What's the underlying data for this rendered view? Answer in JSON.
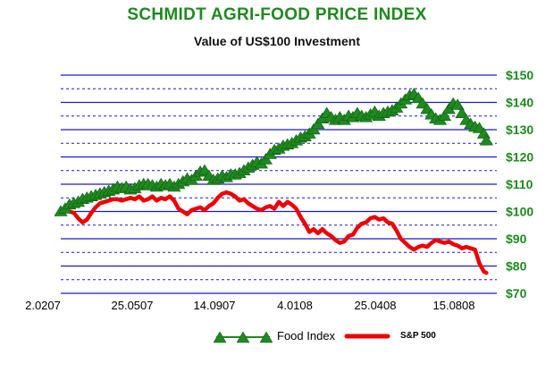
{
  "chart_data": {
    "type": "line",
    "title": "SCHMIDT AGRI-FOOD PRICE INDEX",
    "subtitle": "Value of US$100 Investment",
    "categories": [
      "2.0207",
      "25.0507",
      "14.0907",
      "4.0108",
      "25.0408",
      "15.0808"
    ],
    "y_ticks": [
      "$150",
      "$140",
      "$130",
      "$120",
      "$110",
      "$100",
      "$90",
      "$80",
      "$70"
    ],
    "ylim": [
      70,
      150
    ],
    "grid": true,
    "legend": "bottom",
    "colors": {
      "food": "#1f8a1f",
      "sp": "#ee0000",
      "grid": "#1a1acc",
      "ytick": "#1f8a1f"
    },
    "series": [
      {
        "name": "Food Index",
        "marker": "triangle",
        "points": [
          [
            0.0,
            100.0
          ],
          [
            0.05,
            101.0
          ],
          [
            0.1,
            102.5
          ],
          [
            0.15,
            103.0
          ],
          [
            0.2,
            103.5
          ],
          [
            0.25,
            104.5
          ],
          [
            0.3,
            105.0
          ],
          [
            0.35,
            105.5
          ],
          [
            0.4,
            106.0
          ],
          [
            0.45,
            106.5
          ],
          [
            0.5,
            107.0
          ],
          [
            0.55,
            107.5
          ],
          [
            0.6,
            108.0
          ],
          [
            0.65,
            109.0
          ],
          [
            0.7,
            108.5
          ],
          [
            0.75,
            109.0
          ],
          [
            0.8,
            108.0
          ],
          [
            0.85,
            108.5
          ],
          [
            0.9,
            109.5
          ],
          [
            0.95,
            110.0
          ],
          [
            1.0,
            110.0
          ],
          [
            1.05,
            109.5
          ],
          [
            1.1,
            109.0
          ],
          [
            1.15,
            110.0
          ],
          [
            1.2,
            109.5
          ],
          [
            1.25,
            110.0
          ],
          [
            1.3,
            109.0
          ],
          [
            1.35,
            110.0
          ],
          [
            1.4,
            111.0
          ],
          [
            1.45,
            112.0
          ],
          [
            1.5,
            111.5
          ],
          [
            1.55,
            113.0
          ],
          [
            1.6,
            114.5
          ],
          [
            1.65,
            115.0
          ],
          [
            1.7,
            113.0
          ],
          [
            1.75,
            111.5
          ],
          [
            1.8,
            112.0
          ],
          [
            1.85,
            113.0
          ],
          [
            1.9,
            112.5
          ],
          [
            1.95,
            113.5
          ],
          [
            2.0,
            113.5
          ],
          [
            2.05,
            114.0
          ],
          [
            2.1,
            115.0
          ],
          [
            2.15,
            116.0
          ],
          [
            2.2,
            117.0
          ],
          [
            2.25,
            118.0
          ],
          [
            2.3,
            117.5
          ],
          [
            2.35,
            119.0
          ],
          [
            2.4,
            121.0
          ],
          [
            2.45,
            122.5
          ],
          [
            2.5,
            123.0
          ],
          [
            2.55,
            124.0
          ],
          [
            2.6,
            124.5
          ],
          [
            2.65,
            125.0
          ],
          [
            2.7,
            126.0
          ],
          [
            2.75,
            127.0
          ],
          [
            2.8,
            127.5
          ],
          [
            2.85,
            128.5
          ],
          [
            2.9,
            130.0
          ],
          [
            2.95,
            132.0
          ],
          [
            3.0,
            134.0
          ],
          [
            3.05,
            136.0
          ],
          [
            3.1,
            134.5
          ],
          [
            3.15,
            133.5
          ],
          [
            3.2,
            134.5
          ],
          [
            3.25,
            133.5
          ],
          [
            3.3,
            135.0
          ],
          [
            3.35,
            134.5
          ],
          [
            3.4,
            136.0
          ],
          [
            3.45,
            135.0
          ],
          [
            3.5,
            134.5
          ],
          [
            3.55,
            135.5
          ],
          [
            3.6,
            136.5
          ],
          [
            3.65,
            135.0
          ],
          [
            3.7,
            136.0
          ],
          [
            3.75,
            136.5
          ],
          [
            3.8,
            137.0
          ],
          [
            3.85,
            138.0
          ],
          [
            3.9,
            139.5
          ],
          [
            3.95,
            141.0
          ],
          [
            4.0,
            142.5
          ],
          [
            4.05,
            143.0
          ],
          [
            4.1,
            141.5
          ],
          [
            4.15,
            139.5
          ],
          [
            4.2,
            137.5
          ],
          [
            4.25,
            135.5
          ],
          [
            4.3,
            134.0
          ],
          [
            4.35,
            133.5
          ],
          [
            4.4,
            135.0
          ],
          [
            4.45,
            137.5
          ],
          [
            4.5,
            139.5
          ],
          [
            4.55,
            139.0
          ],
          [
            4.6,
            136.0
          ],
          [
            4.65,
            133.5
          ],
          [
            4.7,
            132.0
          ],
          [
            4.75,
            131.0
          ],
          [
            4.8,
            130.5
          ],
          [
            4.85,
            128.5
          ],
          [
            4.88,
            126.0
          ]
        ]
      },
      {
        "name": "S&P 500",
        "marker": "none",
        "points": [
          [
            0.0,
            100.0
          ],
          [
            0.05,
            100.5
          ],
          [
            0.1,
            100.0
          ],
          [
            0.15,
            99.5
          ],
          [
            0.2,
            97.5
          ],
          [
            0.25,
            96.0
          ],
          [
            0.3,
            97.0
          ],
          [
            0.35,
            99.5
          ],
          [
            0.4,
            101.5
          ],
          [
            0.45,
            103.0
          ],
          [
            0.5,
            103.5
          ],
          [
            0.55,
            104.0
          ],
          [
            0.6,
            104.5
          ],
          [
            0.65,
            104.5
          ],
          [
            0.7,
            104.0
          ],
          [
            0.75,
            104.5
          ],
          [
            0.8,
            105.0
          ],
          [
            0.85,
            104.5
          ],
          [
            0.9,
            105.5
          ],
          [
            0.95,
            104.0
          ],
          [
            1.0,
            104.5
          ],
          [
            1.05,
            105.5
          ],
          [
            1.1,
            104.0
          ],
          [
            1.15,
            105.0
          ],
          [
            1.2,
            104.5
          ],
          [
            1.25,
            105.5
          ],
          [
            1.3,
            104.0
          ],
          [
            1.35,
            101.0
          ],
          [
            1.4,
            100.0
          ],
          [
            1.45,
            99.0
          ],
          [
            1.5,
            100.5
          ],
          [
            1.55,
            101.0
          ],
          [
            1.6,
            101.5
          ],
          [
            1.65,
            100.5
          ],
          [
            1.7,
            102.0
          ],
          [
            1.75,
            103.0
          ],
          [
            1.8,
            105.0
          ],
          [
            1.85,
            106.5
          ],
          [
            1.9,
            107.0
          ],
          [
            1.95,
            106.5
          ],
          [
            2.0,
            105.5
          ],
          [
            2.05,
            104.0
          ],
          [
            2.1,
            104.5
          ],
          [
            2.15,
            103.0
          ],
          [
            2.2,
            102.0
          ],
          [
            2.25,
            101.0
          ],
          [
            2.3,
            100.5
          ],
          [
            2.35,
            101.5
          ],
          [
            2.4,
            102.0
          ],
          [
            2.45,
            101.0
          ],
          [
            2.5,
            103.5
          ],
          [
            2.55,
            102.0
          ],
          [
            2.6,
            103.5
          ],
          [
            2.65,
            102.5
          ],
          [
            2.7,
            101.0
          ],
          [
            2.75,
            98.0
          ],
          [
            2.8,
            95.5
          ],
          [
            2.85,
            92.5
          ],
          [
            2.9,
            93.5
          ],
          [
            2.95,
            92.0
          ],
          [
            3.0,
            93.5
          ],
          [
            3.05,
            92.0
          ],
          [
            3.1,
            91.0
          ],
          [
            3.15,
            89.5
          ],
          [
            3.2,
            88.5
          ],
          [
            3.25,
            89.0
          ],
          [
            3.3,
            91.0
          ],
          [
            3.35,
            91.5
          ],
          [
            3.4,
            94.0
          ],
          [
            3.45,
            95.5
          ],
          [
            3.5,
            96.0
          ],
          [
            3.55,
            97.5
          ],
          [
            3.6,
            98.0
          ],
          [
            3.65,
            97.0
          ],
          [
            3.7,
            97.5
          ],
          [
            3.75,
            96.0
          ],
          [
            3.8,
            95.5
          ],
          [
            3.85,
            93.0
          ],
          [
            3.9,
            90.0
          ],
          [
            3.95,
            88.5
          ],
          [
            4.0,
            87.0
          ],
          [
            4.05,
            86.0
          ],
          [
            4.1,
            87.0
          ],
          [
            4.15,
            87.5
          ],
          [
            4.2,
            87.0
          ],
          [
            4.25,
            88.5
          ],
          [
            4.3,
            89.5
          ],
          [
            4.35,
            89.0
          ],
          [
            4.4,
            88.5
          ],
          [
            4.45,
            89.0
          ],
          [
            4.5,
            88.0
          ],
          [
            4.55,
            87.5
          ],
          [
            4.6,
            86.5
          ],
          [
            4.65,
            87.0
          ],
          [
            4.7,
            86.5
          ],
          [
            4.75,
            86.0
          ],
          [
            4.8,
            81.0
          ],
          [
            4.85,
            78.0
          ],
          [
            4.88,
            77.5
          ]
        ]
      }
    ]
  }
}
